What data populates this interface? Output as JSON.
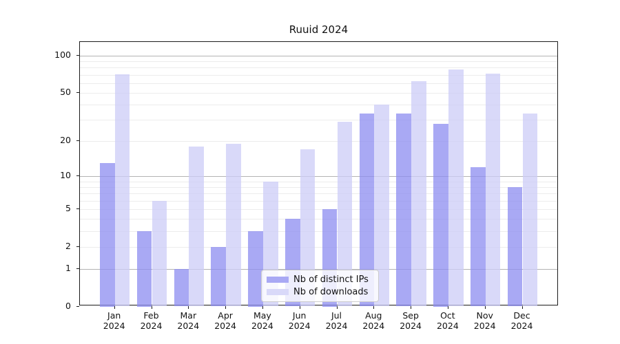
{
  "title": "Ruuid 2024",
  "chart_data": {
    "type": "bar",
    "title": "Ruuid 2024",
    "categories": [
      "Jan",
      "Feb",
      "Mar",
      "Apr",
      "May",
      "Jun",
      "Jul",
      "Aug",
      "Sep",
      "Oct",
      "Nov",
      "Dec"
    ],
    "category_year": "2024",
    "series": [
      {
        "name": "Nb of distinct IPs",
        "color": "#a9a9f4",
        "values": [
          13,
          3,
          1,
          2,
          3,
          4,
          5,
          34,
          34,
          28,
          12,
          8
        ]
      },
      {
        "name": "Nb of downloads",
        "color": "#d9d9f9",
        "values": [
          71,
          6,
          18,
          19,
          9,
          17,
          29,
          40,
          62,
          77,
          72,
          34
        ]
      }
    ],
    "xlabel": "",
    "ylabel": "",
    "yscale": "log1p",
    "ylim": [
      0,
      130
    ],
    "yticks": [
      100,
      50,
      20,
      10,
      5,
      2,
      1,
      0
    ],
    "grid": true,
    "grid_minor_values": [
      2,
      3,
      4,
      5,
      6,
      7,
      8,
      9,
      20,
      30,
      40,
      50,
      60,
      70,
      80,
      90
    ],
    "grid_major_values": [
      1,
      10,
      100
    ],
    "legend_position": "lower center"
  },
  "colors": {
    "bar_distinct_ips": "#a9a9f4",
    "bar_downloads": "#d9d9f9",
    "grid_minor": "#ececec",
    "grid_major": "#b3b3b3",
    "spine": "#1a1a1a",
    "background": "#ffffff"
  }
}
